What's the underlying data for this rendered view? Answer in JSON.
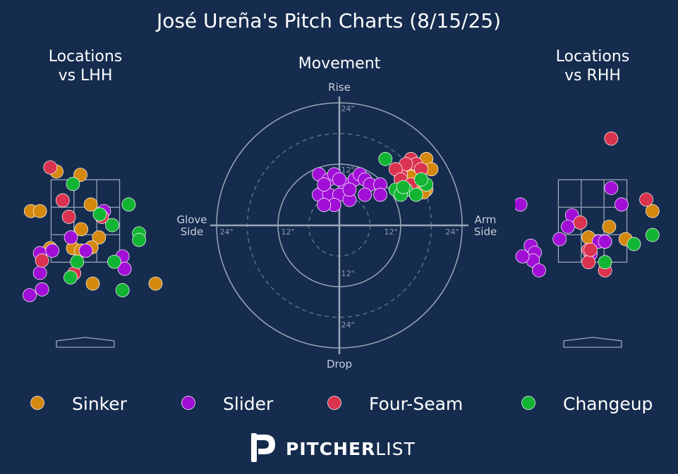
{
  "title": "José Ureña's Pitch Charts (8/15/25)",
  "colors": {
    "background": "#152c4e",
    "Sinker": "#d4880e",
    "Slider": "#a10fd6",
    "Four-Seam": "#d9334f",
    "Changeup": "#12b533",
    "grid": "#9aa6b8"
  },
  "legend": [
    "Sinker",
    "Slider",
    "Four-Seam",
    "Changeup"
  ],
  "logo": "PITCHERLIST",
  "chart_data": [
    {
      "type": "scatter",
      "title": "Locations\nvs LHH",
      "xlabel": "",
      "ylabel": "",
      "xlim": [
        -1.95,
        1.95
      ],
      "ylim": [
        -0.2,
        4.6
      ],
      "strike_zone": {
        "x": [
          -0.83,
          0.83
        ],
        "y": [
          1.5,
          3.5
        ]
      },
      "grid": true,
      "series": [
        {
          "name": "Sinker",
          "points": [
            [
              -0.7,
              3.7
            ],
            [
              -0.12,
              3.62
            ],
            [
              -1.32,
              2.74
            ],
            [
              -1.1,
              2.74
            ],
            [
              0.13,
              2.9
            ],
            [
              -0.1,
              2.3
            ],
            [
              0.33,
              2.1
            ],
            [
              -0.85,
              1.84
            ],
            [
              -0.3,
              1.84
            ],
            [
              -0.1,
              1.78
            ],
            [
              0.15,
              1.86
            ],
            [
              0.18,
              0.98
            ],
            [
              1.7,
              0.98
            ]
          ]
        },
        {
          "name": "Slider",
          "points": [
            [
              -0.35,
              2.1
            ],
            [
              0.45,
              2.74
            ],
            [
              -1.1,
              1.72
            ],
            [
              -0.8,
              1.78
            ],
            [
              0.01,
              1.78
            ],
            [
              -1.1,
              1.24
            ],
            [
              -1.35,
              0.7
            ],
            [
              -1.05,
              0.84
            ],
            [
              0.9,
              1.64
            ],
            [
              0.95,
              1.34
            ]
          ]
        },
        {
          "name": "Four-Seam",
          "points": [
            [
              -0.85,
              3.8
            ],
            [
              -0.55,
              3.0
            ],
            [
              -0.4,
              2.6
            ],
            [
              0.4,
              2.6
            ],
            [
              -1.05,
              1.54
            ],
            [
              -0.27,
              1.23
            ]
          ]
        },
        {
          "name": "Changeup",
          "points": [
            [
              -0.3,
              3.4
            ],
            [
              1.05,
              2.9
            ],
            [
              0.35,
              2.66
            ],
            [
              0.65,
              2.4
            ],
            [
              1.3,
              2.2
            ],
            [
              1.3,
              2.04
            ],
            [
              -0.2,
              1.51
            ],
            [
              0.7,
              1.51
            ],
            [
              -0.36,
              1.13
            ],
            [
              0.9,
              0.82
            ]
          ]
        }
      ]
    },
    {
      "type": "scatter",
      "title": "Movement",
      "xlabel": "",
      "ylabel": "",
      "xlim": [
        -24,
        24
      ],
      "ylim": [
        -24,
        24
      ],
      "rings": [
        6,
        12,
        18,
        24
      ],
      "ring_labels": [
        "12\"",
        "24\""
      ],
      "axis_labels": {
        "top": "Rise",
        "bottom": "Drop",
        "left": "Glove\nSide",
        "right": "Arm\nSide"
      },
      "series": [
        {
          "name": "Sinker",
          "points": [
            [
              13,
              9
            ],
            [
              14,
              10
            ],
            [
              15,
              11
            ],
            [
              16,
              8
            ],
            [
              17,
              13
            ],
            [
              18,
              11
            ],
            [
              14,
              7
            ],
            [
              15,
              8
            ],
            [
              17,
              7
            ],
            [
              16.5,
              6.5
            ],
            [
              14,
              9.5
            ]
          ]
        },
        {
          "name": "Slider",
          "points": [
            [
              -4,
              10
            ],
            [
              -2,
              9
            ],
            [
              -1,
              10
            ],
            [
              1,
              8
            ],
            [
              3,
              9
            ],
            [
              4,
              10
            ],
            [
              5,
              9
            ],
            [
              6,
              8
            ],
            [
              8,
              8
            ],
            [
              -3,
              7
            ],
            [
              -4,
              6
            ],
            [
              -2,
              6
            ],
            [
              0,
              6
            ],
            [
              2,
              5
            ],
            [
              5,
              6
            ],
            [
              -1,
              4
            ],
            [
              -3,
              4
            ],
            [
              -3,
              8
            ],
            [
              0,
              9
            ],
            [
              2,
              7
            ],
            [
              8,
              6
            ]
          ]
        },
        {
          "name": "Four-Seam",
          "points": [
            [
              12,
              10
            ],
            [
              14,
              13
            ],
            [
              15,
              12
            ],
            [
              16,
              11
            ],
            [
              13,
              12
            ],
            [
              11,
              11
            ],
            [
              12,
              9
            ],
            [
              14,
              8
            ]
          ]
        },
        {
          "name": "Changeup",
          "points": [
            [
              9,
              13
            ],
            [
              17,
              8
            ],
            [
              13,
              7
            ],
            [
              11,
              7
            ],
            [
              12,
              6
            ],
            [
              16,
              9
            ],
            [
              15,
              6
            ],
            [
              12.5,
              7.5
            ]
          ]
        }
      ]
    },
    {
      "type": "scatter",
      "title": "Locations\nvs RHH",
      "xlabel": "",
      "ylabel": "",
      "xlim": [
        -1.95,
        1.95
      ],
      "ylim": [
        -0.2,
        4.6
      ],
      "strike_zone": {
        "x": [
          -0.83,
          0.83
        ],
        "y": [
          1.5,
          3.5
        ]
      },
      "grid": true,
      "series": [
        {
          "name": "Sinker",
          "points": [
            [
              1.45,
              2.74
            ],
            [
              0.4,
              2.36
            ],
            [
              0.8,
              2.06
            ],
            [
              0.3,
              2.0
            ],
            [
              -0.1,
              2.1
            ]
          ]
        },
        {
          "name": "Slider",
          "points": [
            [
              0.45,
              3.3
            ],
            [
              0.7,
              2.9
            ],
            [
              -0.5,
              2.64
            ],
            [
              -0.6,
              2.36
            ],
            [
              -1.75,
              2.9
            ],
            [
              -1.5,
              1.9
            ],
            [
              -1.4,
              1.73
            ],
            [
              -1.45,
              1.54
            ],
            [
              -1.3,
              1.3
            ],
            [
              -0.8,
              2.06
            ],
            [
              -1.7,
              1.64
            ],
            [
              0.15,
              2.0
            ],
            [
              -0.05,
              1.7
            ],
            [
              0.3,
              2.0
            ]
          ]
        },
        {
          "name": "Four-Seam",
          "points": [
            [
              0.45,
              4.5
            ],
            [
              1.3,
              3.02
            ],
            [
              -0.3,
              2.46
            ],
            [
              -0.1,
              1.8
            ],
            [
              -0.1,
              1.5
            ],
            [
              -0.05,
              1.8
            ],
            [
              0.3,
              1.3
            ]
          ]
        },
        {
          "name": "Changeup",
          "points": [
            [
              1.0,
              1.94
            ],
            [
              1.45,
              2.16
            ],
            [
              0.3,
              1.5
            ]
          ]
        }
      ]
    }
  ]
}
